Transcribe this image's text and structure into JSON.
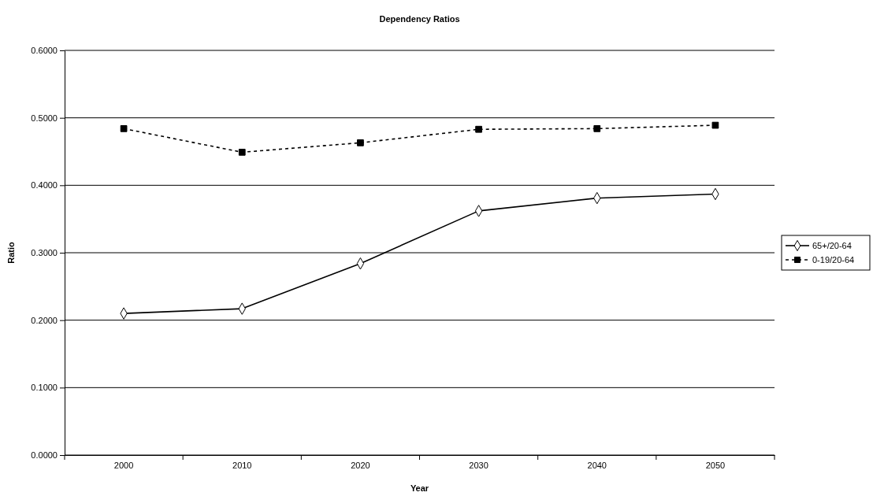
{
  "chart_data": {
    "type": "line",
    "title": "Dependency Ratios",
    "xlabel": "Year",
    "ylabel": "Ratio",
    "categories": [
      "2000",
      "2010",
      "2020",
      "2030",
      "2040",
      "2050"
    ],
    "series": [
      {
        "name": "65+/20-64",
        "color": "#000000",
        "marker": "diamond",
        "line_style": "solid",
        "values": [
          0.21,
          0.217,
          0.284,
          0.362,
          0.381,
          0.387
        ]
      },
      {
        "name": "0-19/20-64",
        "color": "#000000",
        "marker": "square",
        "line_style": "dashed",
        "values": [
          0.484,
          0.449,
          0.463,
          0.483,
          0.484,
          0.489
        ]
      }
    ],
    "ylim": [
      0,
      0.6
    ],
    "yticks": [
      {
        "value": 0,
        "label": "0.0000"
      },
      {
        "value": 0.1,
        "label": "0.1000"
      },
      {
        "value": 0.2,
        "label": "0.2000"
      },
      {
        "value": 0.3,
        "label": "0.3000"
      },
      {
        "value": 0.4,
        "label": "0.4000"
      },
      {
        "value": 0.5,
        "label": "0.5000"
      },
      {
        "value": 0.6,
        "label": "0.6000"
      }
    ],
    "grid": "y",
    "legend": "right"
  }
}
